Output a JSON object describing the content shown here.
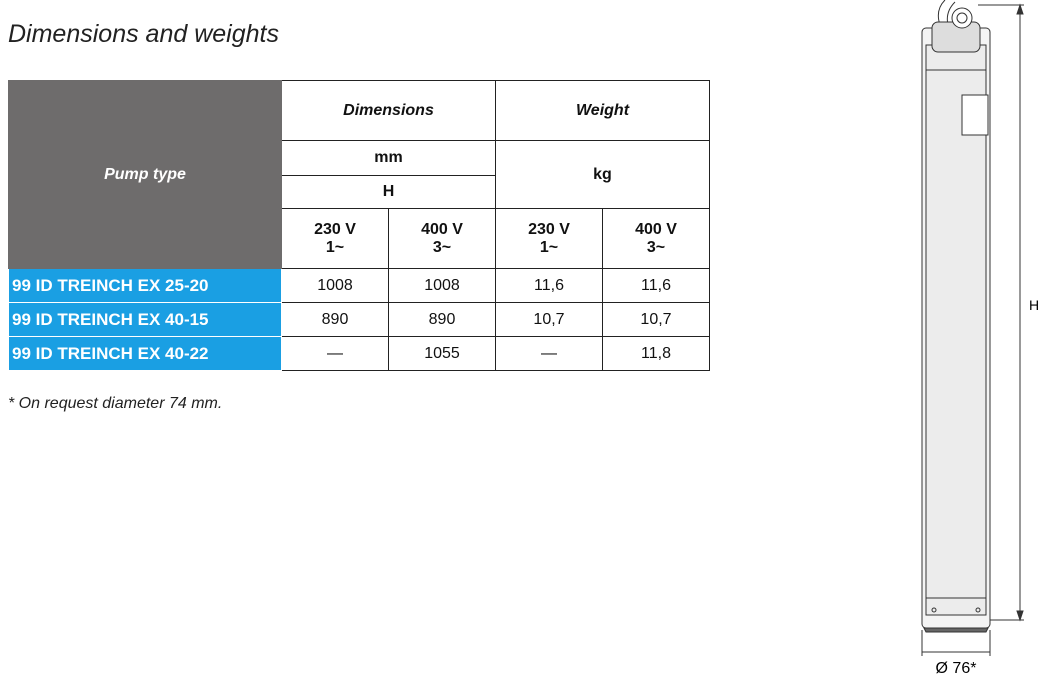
{
  "header": {
    "title": "Dimensions and weights"
  },
  "table": {
    "pump_type": "Pump type",
    "dimensions": "Dimensions",
    "weight": "Weight",
    "dim_unit": "mm",
    "dim_symbol": "H",
    "weight_unit": "kg",
    "voltages": [
      {
        "volt": "230 V",
        "phase": "1~"
      },
      {
        "volt": "400 V",
        "phase": "3~"
      },
      {
        "volt": "230 V",
        "phase": "1~"
      },
      {
        "volt": "400 V",
        "phase": "3~"
      }
    ],
    "rows": [
      [
        "99 ID TREINCH EX 25-20",
        "1008",
        "1008",
        "11,6",
        "11,6"
      ],
      [
        "99 ID TREINCH EX 40-15",
        "890",
        "890",
        "10,7",
        "10,7"
      ],
      [
        "99 ID TREINCH EX 40-22",
        "—",
        "1055",
        "—",
        "11,8"
      ]
    ]
  },
  "footnote": "* On request diameter 74 mm.",
  "drawing": {
    "height_label": "H",
    "diameter_label": "Ø 76*"
  }
}
